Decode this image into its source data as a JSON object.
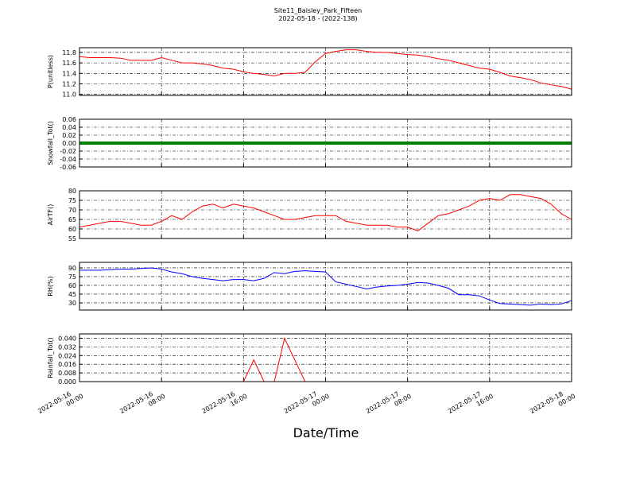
{
  "chart_data": {
    "type": "line",
    "title": "Site11_Baisley_Park_Fifteen",
    "subtitle": "2022-05-18 - (2022-138)",
    "xlabel": "Date/Time",
    "x": [
      "2022-05-16 00:00",
      "2022-05-16 01:00",
      "2022-05-16 02:00",
      "2022-05-16 03:00",
      "2022-05-16 04:00",
      "2022-05-16 05:00",
      "2022-05-16 06:00",
      "2022-05-16 07:00",
      "2022-05-16 08:00",
      "2022-05-16 09:00",
      "2022-05-16 10:00",
      "2022-05-16 11:00",
      "2022-05-16 12:00",
      "2022-05-16 13:00",
      "2022-05-16 14:00",
      "2022-05-16 15:00",
      "2022-05-16 16:00",
      "2022-05-16 17:00",
      "2022-05-16 18:00",
      "2022-05-16 19:00",
      "2022-05-16 20:00",
      "2022-05-16 21:00",
      "2022-05-16 22:00",
      "2022-05-16 23:00",
      "2022-05-17 00:00",
      "2022-05-17 01:00",
      "2022-05-17 02:00",
      "2022-05-17 03:00",
      "2022-05-17 04:00",
      "2022-05-17 05:00",
      "2022-05-17 06:00",
      "2022-05-17 07:00",
      "2022-05-17 08:00",
      "2022-05-17 09:00",
      "2022-05-17 10:00",
      "2022-05-17 11:00",
      "2022-05-17 12:00",
      "2022-05-17 13:00",
      "2022-05-17 14:00",
      "2022-05-17 15:00",
      "2022-05-17 16:00",
      "2022-05-17 17:00",
      "2022-05-17 18:00",
      "2022-05-17 19:00",
      "2022-05-17 20:00",
      "2022-05-17 21:00",
      "2022-05-17 22:00",
      "2022-05-17 23:00",
      "2022-05-18 00:00"
    ],
    "xlim": [
      "2022-05-16 00:00",
      "2022-05-18 00:00"
    ],
    "xticks": [
      "2022-05-16 00:00",
      "2022-05-16 08:00",
      "2022-05-16 16:00",
      "2022-05-17 00:00",
      "2022-05-17 08:00",
      "2022-05-17 16:00",
      "2022-05-18 00:00"
    ],
    "grid": true,
    "panels": [
      {
        "ylabel": "P(unitless)",
        "color": "#ff0000",
        "ylim": [
          10.98,
          11.89
        ],
        "yticks": [
          {
            "value": 11.0,
            "label": "11.0"
          },
          11.2,
          11.4,
          11.6,
          11.8
        ],
        "values": [
          11.72,
          11.7,
          11.7,
          11.7,
          11.69,
          11.65,
          11.65,
          11.65,
          11.7,
          11.65,
          11.6,
          11.6,
          11.58,
          11.55,
          11.5,
          11.48,
          11.43,
          11.4,
          11.38,
          11.35,
          11.4,
          11.4,
          11.42,
          11.62,
          11.78,
          11.82,
          11.85,
          11.85,
          11.82,
          11.8,
          11.8,
          11.78,
          11.76,
          11.75,
          11.72,
          11.68,
          11.65,
          11.6,
          11.55,
          11.5,
          11.48,
          11.42,
          11.35,
          11.32,
          11.28,
          11.22,
          11.18,
          11.15,
          11.1
        ]
      },
      {
        "ylabel": "Snowfall_Tot()",
        "color": "#008000",
        "ylim": [
          -0.06,
          0.06
        ],
        "yticks": [
          -0.06,
          -0.04,
          -0.02,
          {
            "value": 0,
            "label": "0.00"
          },
          0.02,
          0.04,
          0.06
        ],
        "values": [
          0,
          0,
          0,
          0,
          0,
          0,
          0,
          0,
          0,
          0,
          0,
          0,
          0,
          0,
          0,
          0,
          0,
          0,
          0,
          0,
          0,
          0,
          0,
          0,
          0,
          0,
          0,
          0,
          0,
          0,
          0,
          0,
          0,
          0,
          0,
          0,
          0,
          0,
          0,
          0,
          0,
          0,
          0,
          0,
          0,
          0,
          0,
          0,
          0
        ]
      },
      {
        "ylabel": "AirTF()",
        "color": "#ff0000",
        "ylim": [
          55,
          80
        ],
        "yticks": [
          55,
          60,
          65,
          70,
          75,
          80
        ],
        "values": [
          61,
          62,
          63,
          64,
          64,
          63,
          62,
          62,
          64,
          67,
          65,
          69,
          72,
          73,
          71,
          73,
          72,
          71,
          69,
          67,
          65,
          65,
          66,
          67,
          67,
          67,
          64,
          63,
          62,
          62,
          62,
          61,
          61,
          59,
          63,
          67,
          68,
          70,
          72,
          75,
          76,
          75,
          78,
          78,
          77,
          76,
          73,
          68,
          65
        ]
      },
      {
        "ylabel": "RH(%)",
        "color": "#0000ff",
        "ylim": [
          17.7,
          99.5
        ],
        "yticks": [
          30,
          45,
          60,
          75,
          90
        ],
        "values": [
          86,
          86,
          86,
          87,
          88,
          88,
          89,
          90,
          88,
          83,
          80,
          75,
          72,
          70,
          68,
          70,
          70,
          68,
          72,
          82,
          80,
          84,
          85,
          84,
          83,
          66,
          62,
          58,
          54,
          57,
          59,
          60,
          62,
          65,
          64,
          60,
          55,
          44,
          44,
          42,
          35,
          29,
          28,
          27,
          26,
          28,
          27,
          28,
          34
        ]
      },
      {
        "ylabel": "Rainfall_Tot()",
        "color": "#ff0000",
        "ylim": [
          0,
          0.044
        ],
        "yticks": [
          {
            "value": 0,
            "label": "0.000"
          },
          0.008,
          0.016,
          0.024,
          0.032,
          {
            "value": 0.04,
            "label": "0.040"
          }
        ],
        "values": [
          0,
          0,
          0,
          0,
          0,
          0,
          0,
          0,
          0,
          0,
          0,
          0,
          0,
          0,
          0,
          0,
          0,
          0.02,
          0,
          0,
          0.04,
          0.02,
          0,
          0,
          0,
          0,
          0,
          0,
          0,
          0,
          0,
          0,
          0,
          0,
          0,
          0,
          0,
          0,
          0,
          0,
          0,
          0,
          0,
          0,
          0,
          0,
          0,
          0,
          0
        ]
      }
    ]
  }
}
